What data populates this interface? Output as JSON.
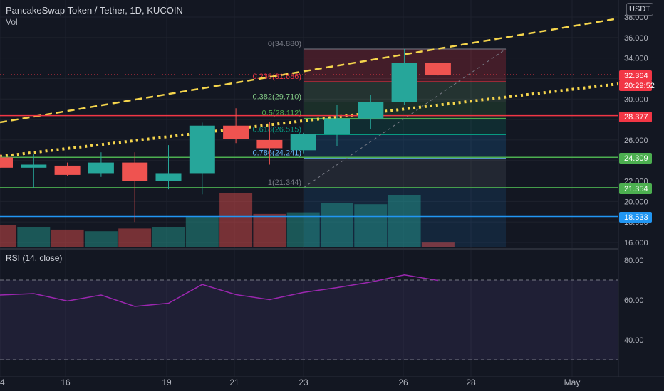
{
  "header": {
    "symbol": "PancakeSwap Token / Tether, 1D, KUCOIN",
    "vol_label": "Vol"
  },
  "currency_button": "USDT",
  "rsi": {
    "title": "RSI (14, close)",
    "ticks": [
      "80.00",
      "60.00",
      "40.00"
    ],
    "values": [
      62.5,
      63.2,
      59.5,
      62.5,
      56.8,
      58.4,
      67.8,
      62.7,
      60.2,
      63.8,
      66.2,
      69.0,
      72.6,
      69.8
    ]
  },
  "price_axis": {
    "ticks": [
      "38.000",
      "36.000",
      "34.000",
      "32.000",
      "30.000",
      "28.000",
      "26.000",
      "24.000",
      "22.000",
      "20.000",
      "18.000",
      "16.000"
    ]
  },
  "price_labels": [
    {
      "text": "32.364",
      "color": "#f23645"
    },
    {
      "text": "20:29:52",
      "color": "#f23645"
    },
    {
      "text": "28.377",
      "color": "#f23645"
    },
    {
      "text": "24.309",
      "color": "#4caf50"
    },
    {
      "text": "21.354",
      "color": "#4caf50"
    },
    {
      "text": "18.533",
      "color": "#2196f3"
    }
  ],
  "time_axis": [
    "4",
    "16",
    "19",
    "21",
    "23",
    "26",
    "28",
    "May"
  ],
  "fib_levels": [
    {
      "text": "0(34.880)",
      "price": 34.88,
      "color": "#787b86"
    },
    {
      "text": "0.236(31.686)",
      "price": 31.686,
      "color": "#f23645"
    },
    {
      "text": "0.382(29.710)",
      "price": 29.71,
      "color": "#81c784"
    },
    {
      "text": "0.5(28.112)",
      "price": 28.112,
      "color": "#4caf50"
    },
    {
      "text": "0.618(26.515)",
      "price": 26.515,
      "color": "#089981"
    },
    {
      "text": "0.786(24.241)",
      "price": 24.241,
      "color": "#64b5f6"
    },
    {
      "text": "1(21.344)",
      "price": 21.344,
      "color": "#787b86"
    }
  ],
  "horizontal_lines": [
    {
      "price": 28.377,
      "color": "#f23645"
    },
    {
      "price": 24.309,
      "color": "#4caf50"
    },
    {
      "price": 21.354,
      "color": "#4caf50"
    },
    {
      "price": 18.533,
      "color": "#2196f3"
    }
  ],
  "colors": {
    "up": "#26a69a",
    "down": "#ef5350",
    "background": "#131722",
    "dash_line": "#f5d54c",
    "rsi": "#9c27b0"
  },
  "chart_data": {
    "type": "candlestick",
    "candles": [
      {
        "o": 24.3,
        "h": 24.6,
        "l": 23.3,
        "c": 23.3
      },
      {
        "o": 23.3,
        "h": 24.6,
        "l": 21.3,
        "c": 23.6
      },
      {
        "o": 23.5,
        "h": 23.8,
        "l": 22.5,
        "c": 22.6
      },
      {
        "o": 22.7,
        "h": 24.8,
        "l": 22.4,
        "c": 23.8
      },
      {
        "o": 23.8,
        "h": 24.8,
        "l": 18.0,
        "c": 22.0
      },
      {
        "o": 22.0,
        "h": 25.5,
        "l": 21.2,
        "c": 22.7
      },
      {
        "o": 22.7,
        "h": 27.7,
        "l": 20.7,
        "c": 27.4
      },
      {
        "o": 27.4,
        "h": 29.1,
        "l": 25.7,
        "c": 26.1
      },
      {
        "o": 26.0,
        "h": 27.8,
        "l": 23.6,
        "c": 25.2
      },
      {
        "o": 25.0,
        "h": 26.7,
        "l": 24.7,
        "c": 26.6
      },
      {
        "o": 26.6,
        "h": 29.4,
        "l": 25.4,
        "c": 28.1
      },
      {
        "o": 28.1,
        "h": 30.4,
        "l": 27.1,
        "c": 29.7
      },
      {
        "o": 29.7,
        "h": 34.88,
        "l": 29.4,
        "c": 33.5
      },
      {
        "o": 33.5,
        "h": 33.5,
        "l": 32.3,
        "c": 32.364
      }
    ],
    "volume": [
      0.42,
      0.38,
      0.33,
      0.3,
      0.35,
      0.38,
      0.58,
      1.0,
      0.62,
      0.65,
      0.82,
      0.8,
      0.97,
      0.09
    ],
    "ylim": [
      16,
      38
    ]
  }
}
